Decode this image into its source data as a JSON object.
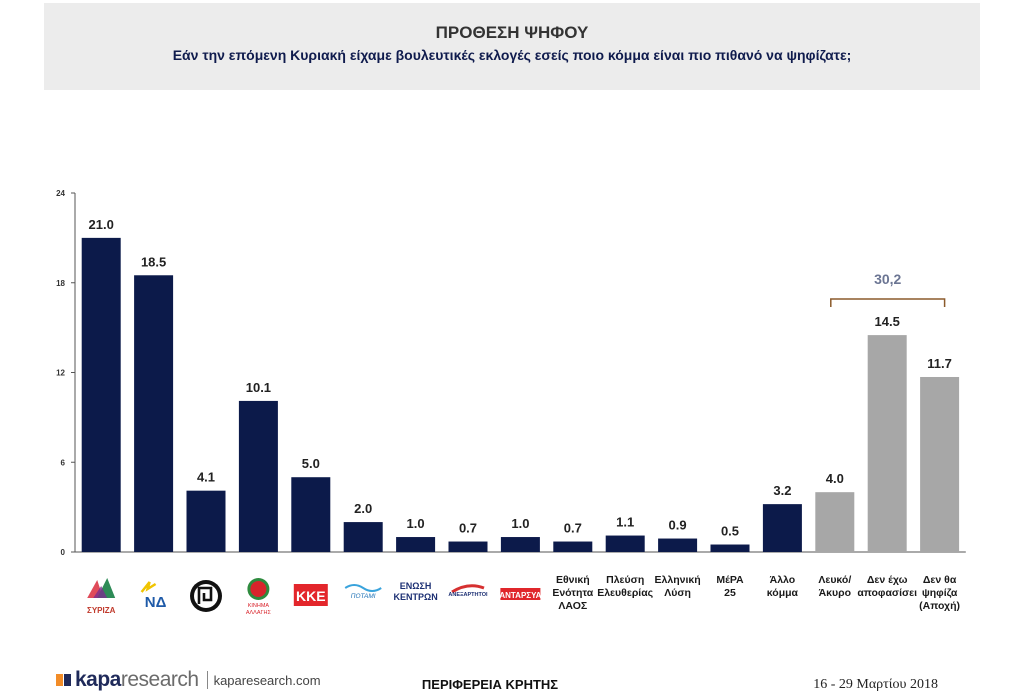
{
  "header": {
    "title": "ΠΡΟΘΕΣΗ ΨΗΦΟΥ",
    "subtitle": "Εάν την επόμενη Κυριακή είχαμε βουλευτικές εκλογές εσείς ποιο κόμμα είναι πιο πιθανό να ψηφίζατε;"
  },
  "chart_data": {
    "type": "bar",
    "ylim": [
      0,
      24
    ],
    "yticks": [
      "0",
      "6",
      "12",
      "18",
      "24"
    ],
    "grid": false,
    "categories": [
      "ΣΥΡΙΖΑ",
      "ΝΔ",
      "Χρυσή Αυγή",
      "ΚΙΝΗΜΑ ΑΛΛΑΓΗΣ",
      "ΚΚΕ",
      "Ποτάμι",
      "ΕΝΩΣΗ ΚΕΝΤΡΩΝ",
      "ΑΝΕΛ",
      "ΑΝΤΑΡΣΥΑ",
      "Εθνική Ενότητα ΛΑΟΣ",
      "Πλεύση Ελευθερίας",
      "Ελληνική Λύση",
      "ΜέΡΑ 25",
      "Άλλο κόμμα",
      "Λευκό/ Άκυρο",
      "Δεν έχω αποφασίσει",
      "Δεν θα ψηφίζα (Αποχή)"
    ],
    "values": [
      21.0,
      18.5,
      4.1,
      10.1,
      5.0,
      2.0,
      1.0,
      0.7,
      1.0,
      0.7,
      1.1,
      0.9,
      0.5,
      3.2,
      4.0,
      14.5,
      11.7
    ],
    "value_labels": [
      "21.0",
      "18.5",
      "4.1",
      "10.1",
      "5.0",
      "2.0",
      "1.0",
      "0.7",
      "1.0",
      "0.7",
      "1.1",
      "0.9",
      "0.5",
      "3.2",
      "4.0",
      "14.5",
      "11.7"
    ],
    "bar_groups": [
      "party",
      "party",
      "party",
      "party",
      "party",
      "party",
      "party",
      "party",
      "party",
      "party",
      "party",
      "party",
      "party",
      "party",
      "other",
      "other",
      "other"
    ],
    "bracket": {
      "label": "30,2",
      "from_index": 14,
      "to_index": 16
    },
    "text_labels": {
      "9": [
        "Εθνική",
        "Ενότητα",
        "ΛΑΟΣ"
      ],
      "10": [
        "Πλεύση",
        "Ελευθερίας"
      ],
      "11": [
        "Ελληνική",
        "Λύση"
      ],
      "12": [
        "ΜέΡΑ",
        "25"
      ],
      "13": [
        "Άλλο",
        "κόμμα"
      ],
      "14": [
        "Λευκό/",
        "Άκυρο"
      ],
      "15": [
        "Δεν έχω",
        "αποφασίσει"
      ],
      "16": [
        "Δεν θα",
        "ψηφίζα",
        "(Αποχή)"
      ]
    },
    "logos": {
      "0": {
        "icon": "syriza-logo",
        "text": "ΣΥΡΙΖΑ"
      },
      "1": {
        "icon": "nd-logo",
        "text": "ΝΔ"
      },
      "2": {
        "icon": "golden-dawn-logo",
        "text": ""
      },
      "3": {
        "icon": "kinima-allagis-logo",
        "text": "ΚΙΝΗΜΑ ΑΛΛΑΓΗΣ"
      },
      "4": {
        "icon": "kke-logo",
        "text": "ΚΚΕ"
      },
      "5": {
        "icon": "potami-logo",
        "text": "ΠΟΤΑΜΙ"
      },
      "6": {
        "icon": "enosi-kentroon-logo",
        "text": "ΕΝΩΣΗ ΚΕΝΤΡΩΝ"
      },
      "7": {
        "icon": "anel-logo",
        "text": "ΑΝΕΞΑΡΤΗΤΟΙ"
      },
      "8": {
        "icon": "antarsya-logo",
        "text": "ΑΝΤΑΡΣΥΑ"
      }
    },
    "colors": {
      "party": "#0c1a4a",
      "other": "#a7a7a7",
      "bracket": "#8b5a2b",
      "bracket_text": "#6b7593"
    }
  },
  "footer": {
    "brand_kapa": "kapa",
    "brand_research": "research",
    "url": "kaparesearch.com",
    "region": "ΠΕΡΙΦΕΡΕΙΑ ΚΡΗΤΗΣ",
    "date": "16 - 29 Μαρτίου 2018"
  }
}
